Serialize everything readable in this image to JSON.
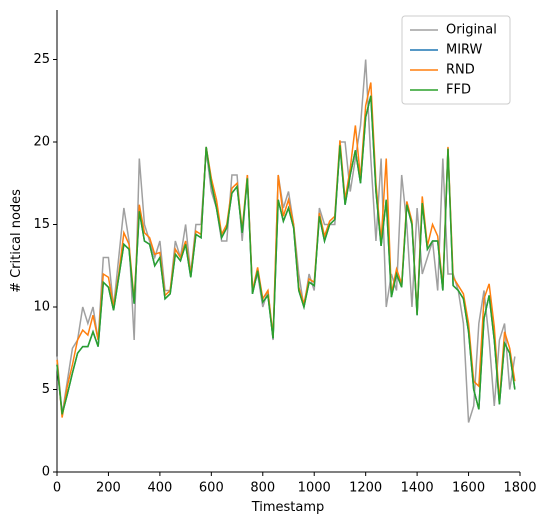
{
  "chart_data": {
    "type": "line",
    "xlabel": "Timestamp",
    "ylabel": "# Critical nodes",
    "xlim": [
      0,
      1800
    ],
    "ylim": [
      0,
      28
    ],
    "xticks": [
      0,
      200,
      400,
      600,
      800,
      1000,
      1200,
      1400,
      1600,
      1800
    ],
    "yticks": [
      0,
      5,
      10,
      15,
      20,
      25
    ],
    "legend": "upper right",
    "x": [
      0,
      20,
      40,
      60,
      80,
      100,
      120,
      140,
      160,
      180,
      200,
      220,
      240,
      260,
      280,
      300,
      320,
      340,
      360,
      380,
      400,
      420,
      440,
      460,
      480,
      500,
      520,
      540,
      560,
      580,
      600,
      620,
      640,
      660,
      680,
      700,
      720,
      740,
      760,
      780,
      800,
      820,
      840,
      860,
      880,
      900,
      920,
      940,
      960,
      980,
      1000,
      1020,
      1040,
      1060,
      1080,
      1100,
      1120,
      1140,
      1160,
      1180,
      1200,
      1220,
      1240,
      1260,
      1280,
      1300,
      1320,
      1340,
      1360,
      1380,
      1400,
      1420,
      1440,
      1460,
      1480,
      1500,
      1520,
      1540,
      1560,
      1580,
      1600,
      1620,
      1640,
      1660,
      1680,
      1700,
      1720,
      1740,
      1760,
      1780
    ],
    "series": [
      {
        "name": "Original",
        "color": "#a0a0a0",
        "values": [
          7,
          3.5,
          5.5,
          7.5,
          8,
          10,
          9,
          10,
          8,
          13,
          13,
          10,
          13,
          16,
          14,
          8,
          19,
          15,
          14,
          13,
          14,
          11,
          11,
          14,
          13,
          15,
          12,
          15,
          15,
          19.5,
          17,
          16,
          14,
          14,
          18,
          18,
          14,
          18,
          11,
          12,
          10,
          11,
          8,
          18,
          16,
          17,
          15,
          12,
          10,
          12,
          11,
          16,
          15,
          15,
          15,
          20,
          20,
          17,
          19,
          21,
          25,
          19,
          14,
          19,
          10,
          12,
          11,
          18,
          15,
          10,
          16,
          12,
          13,
          14,
          11,
          19,
          12,
          12,
          11,
          9,
          3,
          4,
          9,
          11,
          8,
          4,
          8,
          9,
          5,
          7
        ]
      },
      {
        "name": "MIRW",
        "color": "#1f77b4",
        "values": [
          6.5,
          3.5,
          4.7,
          6,
          7.2,
          7.6,
          7.6,
          8.5,
          7.6,
          11.5,
          11.2,
          9.8,
          11.8,
          13.8,
          13.5,
          10.2,
          15.8,
          14,
          13.8,
          12.5,
          13,
          10.5,
          10.8,
          13.2,
          12.8,
          13.8,
          11.8,
          14.4,
          14.2,
          19.7,
          17.5,
          16,
          14.2,
          14.8,
          16.9,
          17.3,
          14.5,
          17.8,
          10.8,
          12.2,
          10.3,
          10.7,
          8.1,
          16.5,
          15.2,
          16,
          14.8,
          11,
          10,
          11.5,
          11.3,
          15.5,
          14,
          15,
          15.3,
          19.8,
          16.2,
          18,
          19.5,
          17.5,
          21.5,
          22.8,
          17,
          13.7,
          16.5,
          10.6,
          12,
          11.2,
          16.2,
          15,
          9.5,
          16.3,
          13.5,
          14,
          14,
          11,
          19.6,
          11.3,
          11,
          10.5,
          8.5,
          5,
          3.8,
          9.3,
          10.7,
          8,
          4.1,
          7.8,
          7.2,
          5
        ]
      },
      {
        "name": "RND",
        "color": "#ff7f0e",
        "values": [
          6.8,
          3.3,
          5.2,
          6.5,
          8,
          8.6,
          8.3,
          9.5,
          8,
          12,
          11.8,
          10,
          12,
          14.5,
          13.8,
          10.4,
          16.2,
          14.5,
          14.2,
          13.2,
          13.3,
          10.7,
          11,
          13.5,
          13,
          14,
          12,
          14.6,
          14.4,
          19.7,
          17.8,
          16.5,
          14.4,
          15,
          17.2,
          17.5,
          14.7,
          18,
          11,
          12.4,
          10.5,
          11,
          8.2,
          18,
          15.5,
          16.5,
          15,
          11.2,
          10.2,
          11.7,
          11.5,
          15.7,
          14.3,
          15.2,
          15.5,
          20.1,
          16.5,
          18.4,
          21,
          17.8,
          22.2,
          23.6,
          17.5,
          14,
          19,
          10.8,
          12.3,
          11.4,
          16.4,
          15.2,
          9.6,
          16.7,
          13.7,
          15,
          14.3,
          11.2,
          19.7,
          11.8,
          11.3,
          10.8,
          9,
          5.5,
          5.2,
          10.5,
          11.4,
          8.8,
          4.3,
          8.5,
          7.5,
          5.5
        ]
      },
      {
        "name": "FFD",
        "color": "#2ca02c",
        "values": [
          6.5,
          3.5,
          4.7,
          6,
          7.2,
          7.6,
          7.6,
          8.5,
          7.6,
          11.5,
          11.2,
          9.8,
          11.8,
          13.8,
          13.5,
          10.2,
          15.8,
          14,
          13.8,
          12.5,
          13,
          10.5,
          10.8,
          13.2,
          12.8,
          13.8,
          11.8,
          14.4,
          14.2,
          19.7,
          17.5,
          16,
          14.2,
          14.8,
          16.9,
          17.3,
          14.5,
          17.8,
          10.8,
          12.2,
          10.3,
          10.7,
          8.1,
          16.5,
          15.2,
          16,
          14.8,
          11,
          10,
          11.5,
          11.3,
          15.5,
          14,
          15,
          15.3,
          19.8,
          16.2,
          18,
          19.5,
          17.5,
          21.5,
          22.8,
          17,
          13.7,
          16.5,
          10.6,
          12,
          11.2,
          16.2,
          15,
          9.5,
          16.3,
          13.5,
          14,
          14,
          11,
          19.6,
          11.3,
          11,
          10.5,
          8.5,
          5,
          3.8,
          9.3,
          10.7,
          8,
          4.1,
          7.8,
          7.2,
          5
        ]
      }
    ]
  }
}
